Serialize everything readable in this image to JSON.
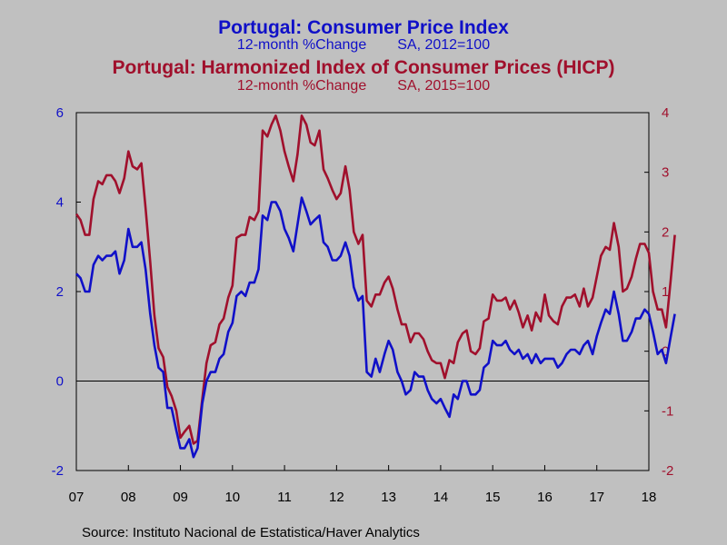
{
  "colors": {
    "cpi": "#1010c8",
    "hicp": "#a0102c",
    "background": "#c0c0c0"
  },
  "header": {
    "title1": "Portugal: Consumer Price Index",
    "sub1_a": "12-month %Change",
    "sub1_b": "SA, 2012=100",
    "title2": "Portugal: Harmonized Index of Consumer Prices (HICP)",
    "sub2_a": "12-month %Change",
    "sub2_b": "SA, 2015=100"
  },
  "source": "Source:  Instituto Nacional de Estatistica/Haver Analytics",
  "chart_data": {
    "type": "line",
    "x_tick_labels": [
      "07",
      "08",
      "09",
      "10",
      "11",
      "12",
      "13",
      "14",
      "15",
      "16",
      "17",
      "18"
    ],
    "x_range": [
      2007.0,
      2018.0
    ],
    "y_left": {
      "ylim": [
        -2,
        6
      ],
      "ticks": [
        "-2",
        "0",
        "2",
        "4",
        "6"
      ]
    },
    "y_right": {
      "ylim": [
        -2,
        4
      ],
      "ticks": [
        "-2",
        "-1",
        "0",
        "1",
        "2",
        "3",
        "4"
      ]
    },
    "zero_line": true,
    "grid": false,
    "series": [
      {
        "axis": "left",
        "color": "#1010c8",
        "points": [
          [
            2007.0,
            2.4
          ],
          [
            2007.08,
            2.3
          ],
          [
            2007.17,
            2.0
          ],
          [
            2007.25,
            2.0
          ],
          [
            2007.33,
            2.6
          ],
          [
            2007.42,
            2.8
          ],
          [
            2007.5,
            2.7
          ],
          [
            2007.58,
            2.8
          ],
          [
            2007.67,
            2.8
          ],
          [
            2007.75,
            2.9
          ],
          [
            2007.83,
            2.4
          ],
          [
            2007.92,
            2.7
          ],
          [
            2008.0,
            3.4
          ],
          [
            2008.08,
            3.0
          ],
          [
            2008.17,
            3.0
          ],
          [
            2008.25,
            3.1
          ],
          [
            2008.33,
            2.5
          ],
          [
            2008.42,
            1.5
          ],
          [
            2008.5,
            0.8
          ],
          [
            2008.58,
            0.3
          ],
          [
            2008.67,
            0.2
          ],
          [
            2008.75,
            -0.6
          ],
          [
            2008.83,
            -0.6
          ],
          [
            2008.92,
            -1.1
          ],
          [
            2009.0,
            -1.5
          ],
          [
            2009.08,
            -1.5
          ],
          [
            2009.17,
            -1.3
          ],
          [
            2009.25,
            -1.7
          ],
          [
            2009.33,
            -1.5
          ],
          [
            2009.42,
            -0.5
          ],
          [
            2009.5,
            0.0
          ],
          [
            2009.58,
            0.2
          ],
          [
            2009.67,
            0.2
          ],
          [
            2009.75,
            0.5
          ],
          [
            2009.83,
            0.6
          ],
          [
            2009.92,
            1.1
          ],
          [
            2010.0,
            1.3
          ],
          [
            2010.08,
            1.9
          ],
          [
            2010.17,
            2.0
          ],
          [
            2010.25,
            1.9
          ],
          [
            2010.33,
            2.2
          ],
          [
            2010.42,
            2.2
          ],
          [
            2010.5,
            2.5
          ],
          [
            2010.58,
            3.7
          ],
          [
            2010.67,
            3.6
          ],
          [
            2010.75,
            4.0
          ],
          [
            2010.83,
            4.0
          ],
          [
            2010.92,
            3.8
          ],
          [
            2011.0,
            3.4
          ],
          [
            2011.08,
            3.2
          ],
          [
            2011.17,
            2.9
          ],
          [
            2011.25,
            3.5
          ],
          [
            2011.33,
            4.1
          ],
          [
            2011.42,
            3.8
          ],
          [
            2011.5,
            3.5
          ],
          [
            2011.58,
            3.6
          ],
          [
            2011.67,
            3.7
          ],
          [
            2011.75,
            3.1
          ],
          [
            2011.83,
            3.0
          ],
          [
            2011.92,
            2.7
          ],
          [
            2012.0,
            2.7
          ],
          [
            2012.08,
            2.8
          ],
          [
            2012.17,
            3.1
          ],
          [
            2012.25,
            2.8
          ],
          [
            2012.33,
            2.1
          ],
          [
            2012.42,
            1.8
          ],
          [
            2012.5,
            1.9
          ],
          [
            2012.58,
            0.2
          ],
          [
            2012.67,
            0.1
          ],
          [
            2012.75,
            0.5
          ],
          [
            2012.83,
            0.2
          ],
          [
            2012.92,
            0.6
          ],
          [
            2013.0,
            0.9
          ],
          [
            2013.08,
            0.7
          ],
          [
            2013.17,
            0.2
          ],
          [
            2013.25,
            0.0
          ],
          [
            2013.33,
            -0.3
          ],
          [
            2013.42,
            -0.2
          ],
          [
            2013.5,
            0.2
          ],
          [
            2013.58,
            0.1
          ],
          [
            2013.67,
            0.1
          ],
          [
            2013.75,
            -0.2
          ],
          [
            2013.83,
            -0.4
          ],
          [
            2013.92,
            -0.5
          ],
          [
            2014.0,
            -0.4
          ],
          [
            2014.08,
            -0.6
          ],
          [
            2014.17,
            -0.8
          ],
          [
            2014.25,
            -0.3
          ],
          [
            2014.33,
            -0.4
          ],
          [
            2014.42,
            0.0
          ],
          [
            2014.5,
            0.0
          ],
          [
            2014.58,
            -0.3
          ],
          [
            2014.67,
            -0.3
          ],
          [
            2014.75,
            -0.2
          ],
          [
            2014.83,
            0.3
          ],
          [
            2014.92,
            0.4
          ],
          [
            2015.0,
            0.9
          ],
          [
            2015.08,
            0.8
          ],
          [
            2015.17,
            0.8
          ],
          [
            2015.25,
            0.9
          ],
          [
            2015.33,
            0.7
          ],
          [
            2015.42,
            0.6
          ],
          [
            2015.5,
            0.7
          ],
          [
            2015.58,
            0.5
          ],
          [
            2015.67,
            0.6
          ],
          [
            2015.75,
            0.4
          ],
          [
            2015.83,
            0.6
          ],
          [
            2015.92,
            0.4
          ],
          [
            2016.0,
            0.5
          ],
          [
            2016.08,
            0.5
          ],
          [
            2016.17,
            0.5
          ],
          [
            2016.25,
            0.3
          ],
          [
            2016.33,
            0.4
          ],
          [
            2016.42,
            0.6
          ],
          [
            2016.5,
            0.7
          ],
          [
            2016.58,
            0.7
          ],
          [
            2016.67,
            0.6
          ],
          [
            2016.75,
            0.8
          ],
          [
            2016.83,
            0.9
          ],
          [
            2016.92,
            0.6
          ],
          [
            2017.0,
            1.0
          ],
          [
            2017.08,
            1.3
          ],
          [
            2017.17,
            1.6
          ],
          [
            2017.25,
            1.5
          ],
          [
            2017.33,
            2.0
          ],
          [
            2017.42,
            1.5
          ],
          [
            2017.5,
            0.9
          ],
          [
            2017.58,
            0.9
          ],
          [
            2017.67,
            1.1
          ],
          [
            2017.75,
            1.4
          ],
          [
            2017.83,
            1.4
          ],
          [
            2017.92,
            1.6
          ],
          [
            2018.0,
            1.5
          ],
          [
            2018.08,
            1.1
          ],
          [
            2018.17,
            0.6
          ],
          [
            2018.25,
            0.7
          ],
          [
            2018.33,
            0.4
          ],
          [
            2018.42,
            1.0
          ],
          [
            2018.5,
            1.5
          ]
        ]
      },
      {
        "axis": "right",
        "color": "#a0102c",
        "points": [
          [
            2007.0,
            2.3
          ],
          [
            2007.08,
            2.2
          ],
          [
            2007.17,
            1.95
          ],
          [
            2007.25,
            1.95
          ],
          [
            2007.33,
            2.55
          ],
          [
            2007.42,
            2.85
          ],
          [
            2007.5,
            2.8
          ],
          [
            2007.58,
            2.95
          ],
          [
            2007.67,
            2.95
          ],
          [
            2007.75,
            2.85
          ],
          [
            2007.83,
            2.65
          ],
          [
            2007.92,
            2.9
          ],
          [
            2008.0,
            3.35
          ],
          [
            2008.08,
            3.1
          ],
          [
            2008.17,
            3.05
          ],
          [
            2008.25,
            3.15
          ],
          [
            2008.33,
            2.4
          ],
          [
            2008.42,
            1.5
          ],
          [
            2008.5,
            0.6
          ],
          [
            2008.58,
            0.05
          ],
          [
            2008.67,
            -0.1
          ],
          [
            2008.75,
            -0.6
          ],
          [
            2008.83,
            -0.75
          ],
          [
            2008.92,
            -1.0
          ],
          [
            2009.0,
            -1.45
          ],
          [
            2009.08,
            -1.35
          ],
          [
            2009.17,
            -1.25
          ],
          [
            2009.25,
            -1.55
          ],
          [
            2009.33,
            -1.5
          ],
          [
            2009.42,
            -0.8
          ],
          [
            2009.5,
            -0.2
          ],
          [
            2009.58,
            0.1
          ],
          [
            2009.67,
            0.15
          ],
          [
            2009.75,
            0.45
          ],
          [
            2009.83,
            0.55
          ],
          [
            2009.92,
            0.9
          ],
          [
            2010.0,
            1.1
          ],
          [
            2010.08,
            1.9
          ],
          [
            2010.17,
            1.95
          ],
          [
            2010.25,
            1.95
          ],
          [
            2010.33,
            2.25
          ],
          [
            2010.42,
            2.2
          ],
          [
            2010.5,
            2.35
          ],
          [
            2010.58,
            3.7
          ],
          [
            2010.67,
            3.6
          ],
          [
            2010.75,
            3.8
          ],
          [
            2010.83,
            3.95
          ],
          [
            2010.92,
            3.7
          ],
          [
            2011.0,
            3.35
          ],
          [
            2011.08,
            3.1
          ],
          [
            2011.17,
            2.85
          ],
          [
            2011.25,
            3.3
          ],
          [
            2011.33,
            3.95
          ],
          [
            2011.42,
            3.8
          ],
          [
            2011.5,
            3.5
          ],
          [
            2011.58,
            3.45
          ],
          [
            2011.67,
            3.7
          ],
          [
            2011.75,
            3.05
          ],
          [
            2011.83,
            2.9
          ],
          [
            2011.92,
            2.7
          ],
          [
            2012.0,
            2.55
          ],
          [
            2012.08,
            2.65
          ],
          [
            2012.17,
            3.1
          ],
          [
            2012.25,
            2.7
          ],
          [
            2012.33,
            2.0
          ],
          [
            2012.42,
            1.8
          ],
          [
            2012.5,
            1.95
          ],
          [
            2012.58,
            0.85
          ],
          [
            2012.67,
            0.75
          ],
          [
            2012.75,
            0.95
          ],
          [
            2012.83,
            0.95
          ],
          [
            2012.92,
            1.15
          ],
          [
            2013.0,
            1.25
          ],
          [
            2013.08,
            1.05
          ],
          [
            2013.17,
            0.7
          ],
          [
            2013.25,
            0.45
          ],
          [
            2013.33,
            0.45
          ],
          [
            2013.42,
            0.15
          ],
          [
            2013.5,
            0.3
          ],
          [
            2013.58,
            0.3
          ],
          [
            2013.67,
            0.2
          ],
          [
            2013.75,
            0.0
          ],
          [
            2013.83,
            -0.15
          ],
          [
            2013.92,
            -0.2
          ],
          [
            2014.0,
            -0.2
          ],
          [
            2014.08,
            -0.45
          ],
          [
            2014.17,
            -0.15
          ],
          [
            2014.25,
            -0.2
          ],
          [
            2014.33,
            0.15
          ],
          [
            2014.42,
            0.3
          ],
          [
            2014.5,
            0.35
          ],
          [
            2014.58,
            0.0
          ],
          [
            2014.67,
            -0.05
          ],
          [
            2014.75,
            0.05
          ],
          [
            2014.83,
            0.5
          ],
          [
            2014.92,
            0.55
          ],
          [
            2015.0,
            0.95
          ],
          [
            2015.08,
            0.85
          ],
          [
            2015.17,
            0.85
          ],
          [
            2015.25,
            0.9
          ],
          [
            2015.33,
            0.7
          ],
          [
            2015.42,
            0.85
          ],
          [
            2015.5,
            0.65
          ],
          [
            2015.58,
            0.4
          ],
          [
            2015.67,
            0.6
          ],
          [
            2015.75,
            0.35
          ],
          [
            2015.83,
            0.65
          ],
          [
            2015.92,
            0.5
          ],
          [
            2016.0,
            0.95
          ],
          [
            2016.08,
            0.6
          ],
          [
            2016.17,
            0.5
          ],
          [
            2016.25,
            0.45
          ],
          [
            2016.33,
            0.75
          ],
          [
            2016.42,
            0.9
          ],
          [
            2016.5,
            0.9
          ],
          [
            2016.58,
            0.95
          ],
          [
            2016.67,
            0.75
          ],
          [
            2016.75,
            1.05
          ],
          [
            2016.83,
            0.75
          ],
          [
            2016.92,
            0.9
          ],
          [
            2017.0,
            1.25
          ],
          [
            2017.08,
            1.6
          ],
          [
            2017.17,
            1.75
          ],
          [
            2017.25,
            1.7
          ],
          [
            2017.33,
            2.15
          ],
          [
            2017.42,
            1.75
          ],
          [
            2017.5,
            1.0
          ],
          [
            2017.58,
            1.05
          ],
          [
            2017.67,
            1.25
          ],
          [
            2017.75,
            1.55
          ],
          [
            2017.83,
            1.8
          ],
          [
            2017.92,
            1.8
          ],
          [
            2018.0,
            1.65
          ],
          [
            2018.08,
            1.0
          ],
          [
            2018.17,
            0.7
          ],
          [
            2018.25,
            0.7
          ],
          [
            2018.33,
            0.4
          ],
          [
            2018.42,
            1.2
          ],
          [
            2018.5,
            1.95
          ]
        ]
      }
    ]
  }
}
